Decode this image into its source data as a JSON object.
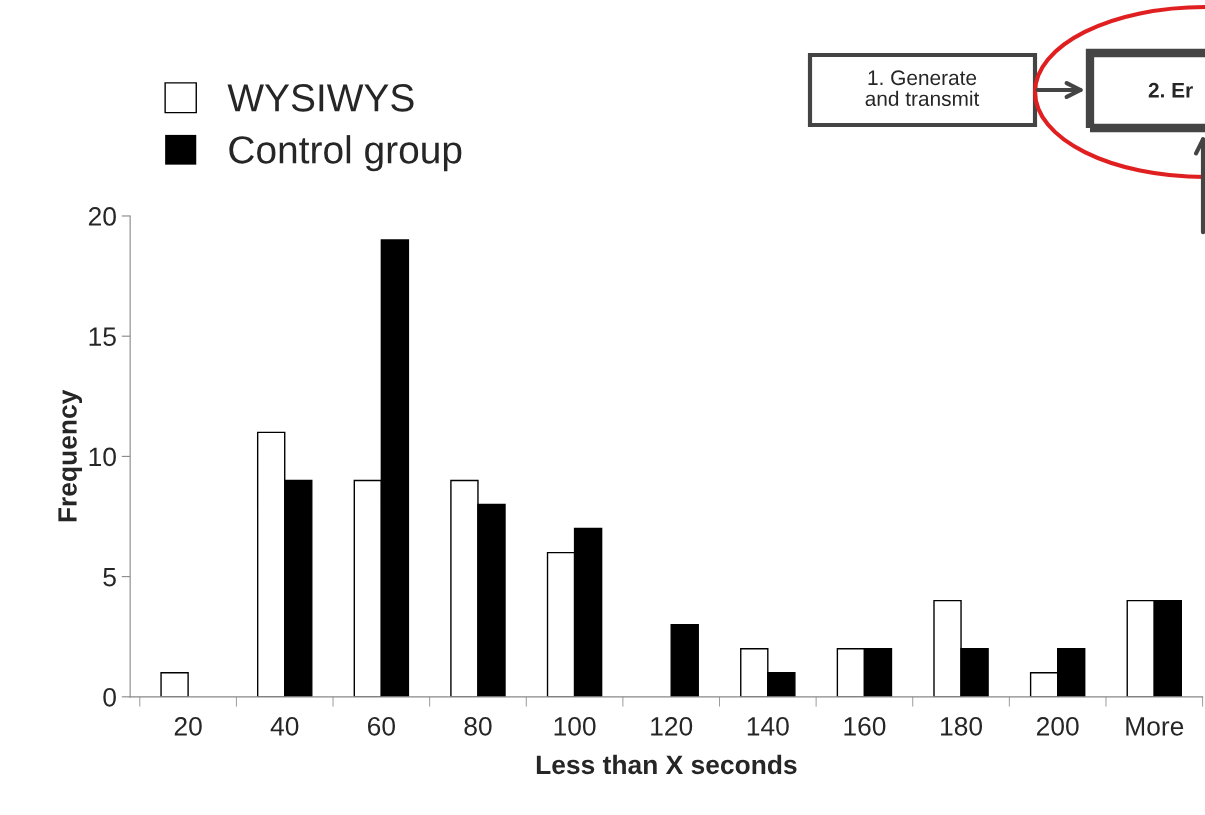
{
  "chart_data": {
    "type": "bar",
    "xlabel": "Less than X seconds",
    "ylabel": "Frequency",
    "categories": [
      "20",
      "40",
      "60",
      "80",
      "100",
      "120",
      "140",
      "160",
      "180",
      "200",
      "More"
    ],
    "series": [
      {
        "name": "WYSIWYS",
        "color": "#ffffff",
        "values": [
          1,
          11,
          9,
          9,
          6,
          0,
          2,
          2,
          4,
          1,
          4
        ]
      },
      {
        "name": "Control group",
        "color": "#000000",
        "values": [
          0,
          9,
          19,
          8,
          7,
          3,
          1,
          2,
          2,
          2,
          4
        ]
      }
    ],
    "ylim": [
      0,
      20
    ],
    "yticks": [
      0,
      5,
      10,
      15,
      20
    ],
    "grid": false,
    "legend": "top left",
    "annotations": [
      "1. Generate\nand transmit",
      "2. Er"
    ]
  }
}
